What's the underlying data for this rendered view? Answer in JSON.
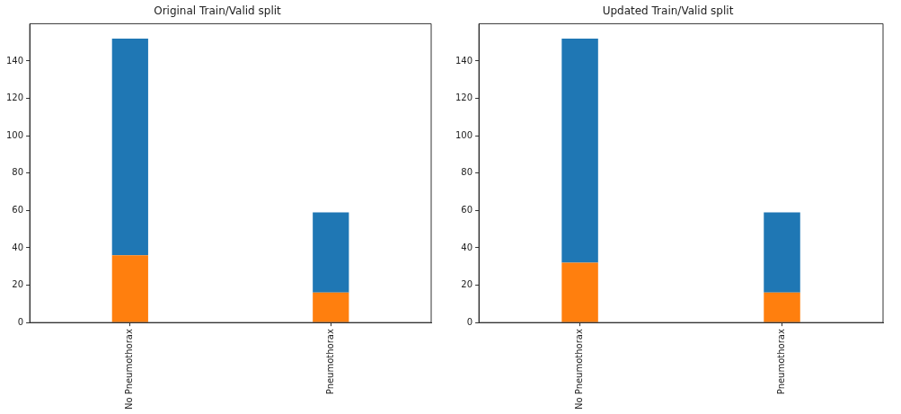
{
  "chart_data": [
    {
      "type": "bar",
      "title": "Original Train/Valid split",
      "categories": [
        "No Pneumothorax",
        "Pneumothorax"
      ],
      "stacked": true,
      "series": [
        {
          "color": "#ff7f0e",
          "values": [
            36,
            16
          ]
        },
        {
          "color": "#1f77b4",
          "values": [
            116,
            43
          ]
        }
      ],
      "ylim": [
        0,
        160
      ],
      "yticks": [
        0,
        20,
        40,
        60,
        80,
        100,
        120,
        140
      ]
    },
    {
      "type": "bar",
      "title": "Updated Train/Valid split",
      "categories": [
        "No Pneumothorax",
        "Pneumothorax"
      ],
      "stacked": true,
      "series": [
        {
          "color": "#ff7f0e",
          "values": [
            32,
            16
          ]
        },
        {
          "color": "#1f77b4",
          "values": [
            120,
            43
          ]
        }
      ],
      "ylim": [
        0,
        160
      ],
      "yticks": [
        0,
        20,
        40,
        60,
        80,
        100,
        120,
        140
      ]
    }
  ]
}
